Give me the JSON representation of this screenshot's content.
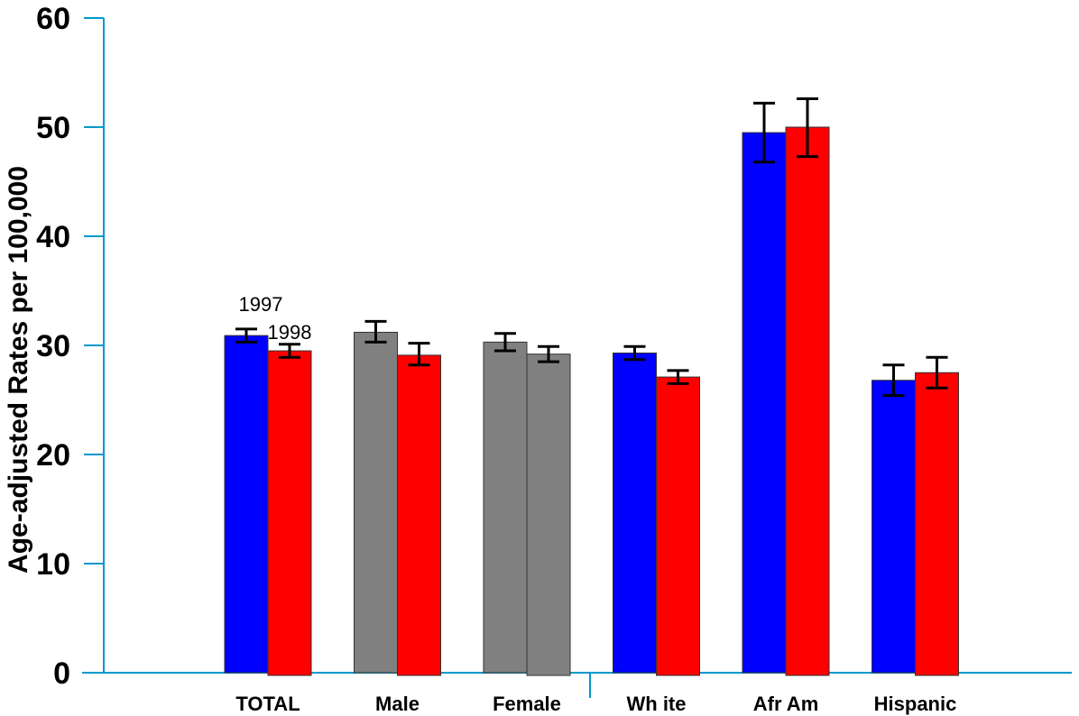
{
  "chart_data": {
    "type": "bar",
    "title": "",
    "xlabel": "",
    "ylabel": "Age-adjusted Rates per 100,000",
    "ylim": [
      0,
      60
    ],
    "yticks": [
      "0",
      "10",
      "20",
      "30",
      "40",
      "50",
      "60"
    ],
    "grid": false,
    "categories": [
      "TOTAL",
      "Male",
      "Female",
      "Wh ite",
      "Afr Am",
      "Hispanic"
    ],
    "series": [
      {
        "name": "1997",
        "values": [
          30.9,
          31.2,
          30.3,
          29.3,
          49.5,
          26.8
        ],
        "error_low": [
          30.3,
          30.3,
          29.5,
          28.7,
          46.8,
          25.4
        ],
        "error_high": [
          31.5,
          32.2,
          31.1,
          29.9,
          52.2,
          28.2
        ],
        "colors": [
          "#0000ff",
          "#808080",
          "#808080",
          "#0000ff",
          "#0000ff",
          "#0000ff"
        ]
      },
      {
        "name": "1998",
        "values": [
          29.5,
          29.1,
          29.2,
          27.1,
          50.0,
          27.5
        ],
        "error_low": [
          28.9,
          28.2,
          28.5,
          26.5,
          47.3,
          26.1
        ],
        "error_high": [
          30.1,
          30.2,
          29.9,
          27.7,
          52.6,
          28.9
        ],
        "colors": [
          "#ff0000",
          "#ff0000",
          "#808080",
          "#ff0000",
          "#ff0000",
          "#ff0000"
        ]
      }
    ],
    "annotations": [
      {
        "text": "1997",
        "category": "TOTAL",
        "series": 0
      },
      {
        "text": "1998",
        "category": "TOTAL",
        "series": 1
      }
    ],
    "axis_color": "#0099cc"
  }
}
